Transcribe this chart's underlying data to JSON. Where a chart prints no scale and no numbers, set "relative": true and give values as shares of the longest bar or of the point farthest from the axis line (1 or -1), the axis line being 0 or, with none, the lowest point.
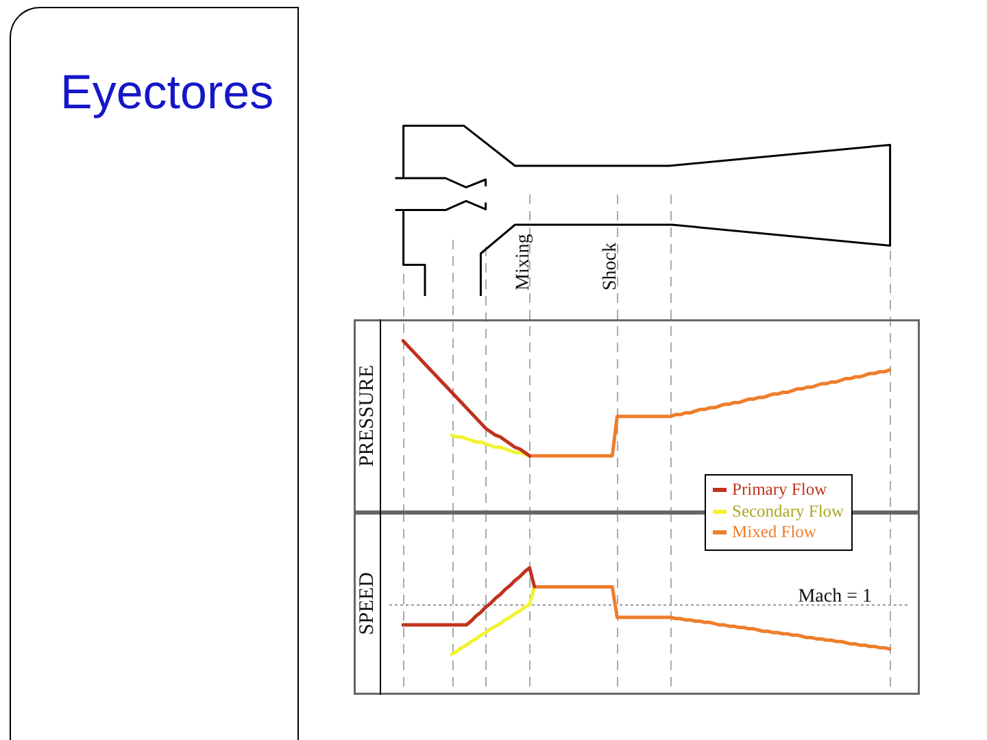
{
  "chart_data": [
    {
      "type": "line",
      "title": "Eyectores",
      "ylabel": "PRESSURE",
      "relative": true,
      "grid": "x",
      "legend": "bottom right",
      "annotations": [
        "Mixing",
        "Shock"
      ],
      "categories": [
        null,
        null,
        null,
        null,
        null,
        null,
        null,
        null,
        null,
        null,
        null,
        null,
        null,
        null,
        null,
        null,
        null,
        null,
        null,
        null,
        null,
        null,
        null,
        null,
        null,
        null,
        null,
        null,
        null,
        null,
        null,
        null,
        null,
        null,
        null,
        null,
        null,
        null,
        null,
        null,
        null,
        null,
        null,
        null,
        null,
        null,
        null,
        null,
        null,
        null,
        null,
        null,
        null,
        null,
        null,
        null,
        null,
        null,
        null,
        null,
        null,
        null,
        null,
        null,
        null,
        null,
        null,
        null,
        null,
        null,
        null,
        null,
        null,
        null,
        null,
        null,
        null,
        null,
        null,
        null,
        null,
        null,
        null,
        null,
        null,
        null,
        null,
        null,
        null,
        null,
        null,
        null,
        null,
        null,
        null,
        null,
        null,
        null,
        null,
        null,
        null
      ],
      "series": [
        {
          "name": "Primary Flow",
          "color": "#c0321e",
          "values": [
            1,
            0.97,
            0.94,
            0.91,
            0.88,
            0.85,
            0.82,
            0.79,
            0.76,
            0.73,
            0.7,
            0.67,
            0.64,
            0.61,
            0.58,
            0.55,
            0.52,
            0.49,
            0.47,
            0.45,
            0.44,
            0.42,
            0.4,
            0.38,
            0.37,
            0.35,
            0.33,
            null,
            null,
            null,
            null,
            null,
            null,
            null,
            null,
            null,
            null,
            null,
            null,
            null,
            null,
            null,
            null,
            null,
            null,
            null,
            null,
            null,
            null,
            null,
            null,
            null,
            null,
            null,
            null,
            null,
            null,
            null,
            null,
            null,
            null,
            null,
            null,
            null,
            null,
            null,
            null,
            null,
            null,
            null,
            null,
            null,
            null,
            null,
            null,
            null,
            null,
            null,
            null,
            null,
            null,
            null,
            null,
            null,
            null,
            null,
            null,
            null,
            null,
            null,
            null,
            null,
            null,
            null,
            null,
            null,
            null,
            null,
            null,
            null,
            null
          ]
        },
        {
          "name": "Secondary Flow",
          "color": "#f2f230",
          "values": [
            null,
            null,
            null,
            null,
            null,
            null,
            null,
            null,
            null,
            null,
            0.45,
            0.44,
            0.44,
            0.43,
            0.42,
            0.41,
            0.41,
            0.4,
            0.39,
            0.38,
            0.38,
            0.37,
            0.36,
            0.35,
            0.35,
            0.34,
            0.33,
            null,
            null,
            null,
            null,
            null,
            null,
            null,
            null,
            null,
            null,
            null,
            null,
            null,
            null,
            null,
            null,
            null,
            null,
            null,
            null,
            null,
            null,
            null,
            null,
            null,
            null,
            null,
            null,
            null,
            null,
            null,
            null,
            null,
            null,
            null,
            null,
            null,
            null,
            null,
            null,
            null,
            null,
            null,
            null,
            null,
            null,
            null,
            null,
            null,
            null,
            null,
            null,
            null,
            null,
            null,
            null,
            null,
            null,
            null,
            null,
            null,
            null,
            null,
            null,
            null,
            null,
            null,
            null,
            null,
            null,
            null,
            null,
            null,
            null
          ]
        },
        {
          "name": "Mixed Flow",
          "color": "#ee7d2c",
          "values": [
            null,
            null,
            null,
            null,
            null,
            null,
            null,
            null,
            null,
            null,
            null,
            null,
            null,
            null,
            null,
            null,
            null,
            null,
            null,
            null,
            null,
            null,
            null,
            null,
            null,
            null,
            0.33,
            0.33,
            0.33,
            0.33,
            0.33,
            0.33,
            0.33,
            0.33,
            0.33,
            0.33,
            0.33,
            0.33,
            0.33,
            0.33,
            0.33,
            0.33,
            0.33,
            0.33,
            0.56,
            0.56,
            0.56,
            0.56,
            0.56,
            0.56,
            0.56,
            0.56,
            0.56,
            0.56,
            0.56,
            0.56,
            0.57,
            0.57,
            0.58,
            0.58,
            0.59,
            0.6,
            0.6,
            0.61,
            0.61,
            0.62,
            0.63,
            0.63,
            0.64,
            0.64,
            0.65,
            0.66,
            0.66,
            0.67,
            0.67,
            0.68,
            0.69,
            0.69,
            0.7,
            0.7,
            0.71,
            0.72,
            0.72,
            0.73,
            0.73,
            0.74,
            0.75,
            0.75,
            0.76,
            0.76,
            0.77,
            0.78,
            0.78,
            0.79,
            0.79,
            0.8,
            0.81,
            0.81,
            0.82,
            0.82,
            0.83
          ]
        }
      ]
    },
    {
      "type": "line",
      "ylabel": "SPEED",
      "relative": true,
      "grid": "x",
      "categories": [
        null,
        null,
        null,
        null,
        null,
        null,
        null,
        null,
        null,
        null,
        null,
        null,
        null,
        null,
        null,
        null,
        null,
        null,
        null,
        null,
        null,
        null,
        null,
        null,
        null,
        null,
        null,
        null,
        null,
        null,
        null,
        null,
        null,
        null,
        null,
        null,
        null,
        null,
        null,
        null,
        null,
        null,
        null,
        null,
        null,
        null,
        null,
        null,
        null,
        null,
        null,
        null,
        null,
        null,
        null,
        null,
        null,
        null,
        null,
        null,
        null,
        null,
        null,
        null,
        null,
        null,
        null,
        null,
        null,
        null,
        null,
        null,
        null,
        null,
        null,
        null,
        null,
        null,
        null,
        null,
        null,
        null,
        null,
        null,
        null,
        null,
        null,
        null,
        null,
        null,
        null,
        null,
        null,
        null,
        null,
        null,
        null,
        null,
        null,
        null,
        null
      ],
      "series": [
        {
          "color": "#c0321e",
          "values": [
            0.55,
            0.55,
            0.55,
            0.55,
            0.55,
            0.55,
            0.55,
            0.55,
            0.55,
            0.55,
            0.55,
            0.55,
            0.55,
            0.55,
            0.58,
            0.62,
            0.65,
            0.69,
            0.72,
            0.76,
            0.79,
            0.83,
            0.86,
            0.9,
            0.93,
            0.97,
            1,
            0.85,
            null,
            null,
            null,
            null,
            null,
            null,
            null,
            null,
            null,
            null,
            null,
            null,
            null,
            null,
            null,
            null,
            null,
            null,
            null,
            null,
            null,
            null,
            null,
            null,
            null,
            null,
            null,
            null,
            null,
            null,
            null,
            null,
            null,
            null,
            null,
            null,
            null,
            null,
            null,
            null,
            null,
            null,
            null,
            null,
            null,
            null,
            null,
            null,
            null,
            null,
            null,
            null,
            null,
            null,
            null,
            null,
            null,
            null,
            null,
            null,
            null,
            null,
            null,
            null,
            null,
            null,
            null,
            null,
            null,
            null,
            null,
            null,
            null
          ]
        },
        {
          "color": "#f2f230",
          "values": [
            null,
            null,
            null,
            null,
            null,
            null,
            null,
            null,
            null,
            null,
            0.32,
            0.34,
            0.37,
            0.39,
            0.42,
            0.44,
            0.47,
            0.49,
            0.52,
            0.54,
            0.56,
            0.59,
            0.61,
            0.64,
            0.66,
            0.69,
            0.71,
            0.85,
            null,
            null,
            null,
            null,
            null,
            null,
            null,
            null,
            null,
            null,
            null,
            null,
            null,
            null,
            null,
            null,
            null,
            null,
            null,
            null,
            null,
            null,
            null,
            null,
            null,
            null,
            null,
            null,
            null,
            null,
            null,
            null,
            null,
            null,
            null,
            null,
            null,
            null,
            null,
            null,
            null,
            null,
            null,
            null,
            null,
            null,
            null,
            null,
            null,
            null,
            null,
            null,
            null,
            null,
            null,
            null,
            null,
            null,
            null,
            null,
            null,
            null,
            null,
            null,
            null,
            null,
            null,
            null,
            null,
            null,
            null,
            null,
            null
          ]
        },
        {
          "color": "#ee7d2c",
          "values": [
            null,
            null,
            null,
            null,
            null,
            null,
            null,
            null,
            null,
            null,
            null,
            null,
            null,
            null,
            null,
            null,
            null,
            null,
            null,
            null,
            null,
            null,
            null,
            null,
            null,
            null,
            null,
            0.85,
            0.85,
            0.85,
            0.85,
            0.85,
            0.85,
            0.85,
            0.85,
            0.85,
            0.85,
            0.85,
            0.85,
            0.85,
            0.85,
            0.85,
            0.85,
            0.85,
            0.61,
            0.61,
            0.61,
            0.61,
            0.61,
            0.61,
            0.61,
            0.61,
            0.61,
            0.61,
            0.61,
            0.61,
            0.6,
            0.6,
            0.59,
            0.59,
            0.58,
            0.58,
            0.57,
            0.57,
            0.56,
            0.55,
            0.55,
            0.54,
            0.54,
            0.53,
            0.53,
            0.52,
            0.52,
            0.51,
            0.5,
            0.5,
            0.49,
            0.49,
            0.48,
            0.48,
            0.47,
            0.47,
            0.46,
            0.45,
            0.45,
            0.44,
            0.44,
            0.43,
            0.43,
            0.42,
            0.42,
            0.41,
            0.4,
            0.4,
            0.39,
            0.39,
            0.38,
            0.38,
            0.37,
            0.37,
            0.36
          ]
        }
      ],
      "ref_lines": [
        {
          "axis": "y",
          "value": 0.71,
          "label": "Mach = 1",
          "line_style": "dotted",
          "color": "#999999"
        }
      ]
    }
  ]
}
